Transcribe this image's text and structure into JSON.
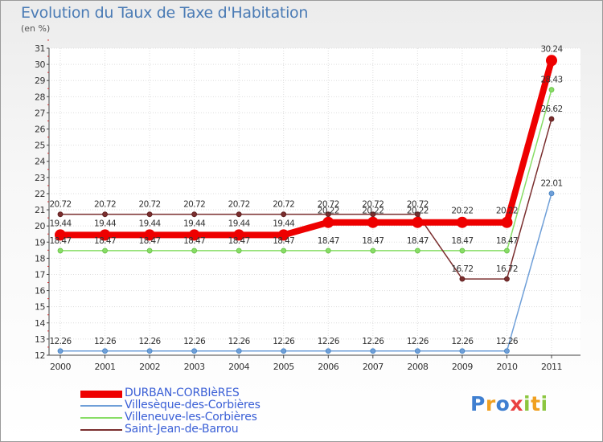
{
  "title": "Evolution du Taux de Taxe d'Habitation",
  "unit": "(en %)",
  "logo": {
    "p": "P",
    "r": "r",
    "o": "o",
    "x": "x",
    "i1": "i",
    "t": "t",
    "i2": "i"
  },
  "chart_data": {
    "type": "line",
    "title": "Evolution du Taux de Taxe d'Habitation",
    "ylabel": "(en %)",
    "xlabel": "",
    "x": [
      "2000",
      "2001",
      "2002",
      "2003",
      "2004",
      "2005",
      "2006",
      "2007",
      "2008",
      "2009",
      "2010",
      "2011"
    ],
    "ylim": [
      12,
      31
    ],
    "yticks": [
      "12",
      "13",
      "14",
      "15",
      "16",
      "17",
      "18",
      "19",
      "20",
      "21",
      "22",
      "23",
      "24",
      "25",
      "26",
      "27",
      "28",
      "29",
      "30",
      "31"
    ],
    "series": [
      {
        "name": "DURBAN-CORBIèRES",
        "color": "#ee0000",
        "width": 8,
        "marker": 7,
        "values": [
          19.44,
          19.44,
          19.44,
          19.44,
          19.44,
          19.44,
          20.22,
          20.22,
          20.22,
          20.22,
          20.22,
          30.24
        ],
        "labels": [
          "19.44",
          "19.44",
          "19.44",
          "19.44",
          "19.44",
          "19.44",
          "20.22",
          "20.22",
          "20.22",
          "20.22",
          "20.22",
          "30.24"
        ]
      },
      {
        "name": "Villesèque-des-Corbières",
        "color": "#6f9fd8",
        "width": 1.5,
        "marker": 3,
        "values": [
          12.26,
          12.26,
          12.26,
          12.26,
          12.26,
          12.26,
          12.26,
          12.26,
          12.26,
          12.26,
          12.26,
          22.01
        ],
        "labels": [
          "12.26",
          "12.26",
          "12.26",
          "12.26",
          "12.26",
          "12.26",
          "12.26",
          "12.26",
          "12.26",
          "12.26",
          "12.26",
          "22.01"
        ]
      },
      {
        "name": "Villeneuve-les-Corbières",
        "color": "#88dd66",
        "width": 1.5,
        "marker": 3,
        "values": [
          18.47,
          18.47,
          18.47,
          18.47,
          18.47,
          18.47,
          18.47,
          18.47,
          18.47,
          18.47,
          18.47,
          28.43
        ],
        "labels": [
          "18.47",
          "18.47",
          "18.47",
          "18.47",
          "18.47",
          "18.47",
          "18.47",
          "18.47",
          "18.47",
          "18.47",
          "18.47",
          "28.43"
        ]
      },
      {
        "name": "Saint-Jean-de-Barrou",
        "color": "#7a2e2e",
        "width": 1.5,
        "marker": 3,
        "values": [
          20.72,
          20.72,
          20.72,
          20.72,
          20.72,
          20.72,
          20.72,
          20.72,
          20.72,
          16.72,
          16.72,
          26.62
        ],
        "labels": [
          "20.72",
          "20.72",
          "20.72",
          "20.72",
          "20.72",
          "20.72",
          "20.72",
          "20.72",
          "20.72",
          "16.72",
          "16.72",
          "26.62"
        ]
      }
    ]
  }
}
